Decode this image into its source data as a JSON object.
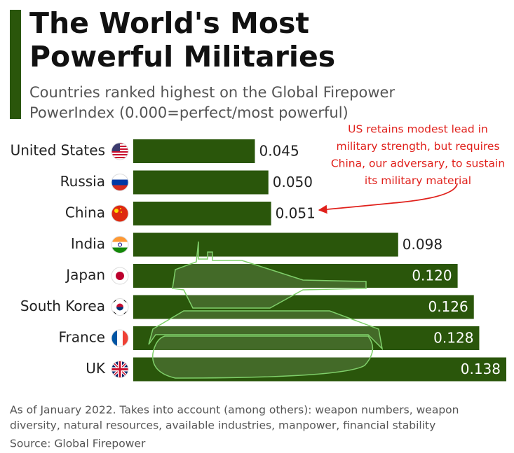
{
  "chart_data": {
    "type": "bar",
    "orientation": "horizontal",
    "title_lines": [
      "The World's Most",
      "Powerful Militaries"
    ],
    "subtitle_lines": [
      "Countries ranked highest on the Global Firepower",
      "PowerIndex (0.000=perfect/most powerful)"
    ],
    "categories": [
      "United States",
      "Russia",
      "China",
      "India",
      "Japan",
      "South Korea",
      "France",
      "UK"
    ],
    "values": [
      0.045,
      0.05,
      0.051,
      0.098,
      0.12,
      0.126,
      0.128,
      0.138
    ],
    "value_labels": [
      "0.045",
      "0.050",
      "0.051",
      "0.098",
      "0.120",
      "0.126",
      "0.128",
      "0.138"
    ],
    "color": "#2a560b",
    "annotation_lines": [
      "US retains modest lead in",
      "military strength, but requires",
      "China, our adversary, to sustain",
      "its military material"
    ],
    "note_lines": [
      "As of January 2022. Takes into account (among others): weapon numbers, weapon",
      "diversity, natural resources, available industries, manpower, financial stability"
    ],
    "source": "Source: Global Firepower"
  }
}
